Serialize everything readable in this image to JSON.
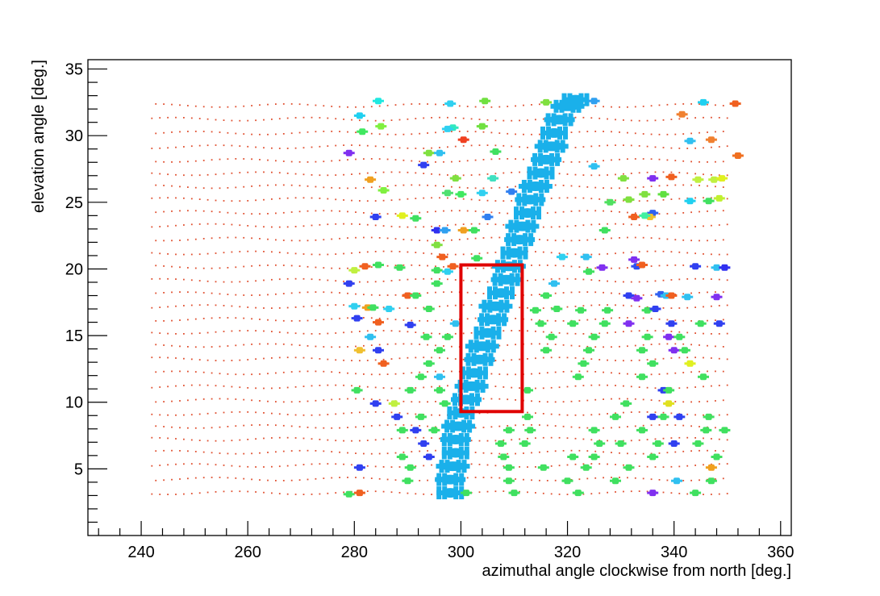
{
  "chart_data": {
    "type": "scatter",
    "title": "",
    "xlabel": "azimuthal angle clockwise from north [deg.]",
    "ylabel": "elevation angle [deg.]",
    "xlim": [
      230,
      362
    ],
    "ylim": [
      0,
      35.7
    ],
    "xticks": [
      240,
      260,
      280,
      300,
      320,
      340,
      360
    ],
    "xtick_labels": [
      "240",
      "260",
      "280",
      "300",
      "320",
      "340",
      "360"
    ],
    "yticks": [
      5,
      10,
      15,
      20,
      25,
      30,
      35
    ],
    "ytick_labels": [
      "5",
      "10",
      "15",
      "20",
      "25",
      "30",
      "35"
    ],
    "grid": false,
    "legend": "none",
    "background_points": {
      "color": "#e05030",
      "elevation_range": [
        3.2,
        32.5
      ],
      "elevation_step": 1.0,
      "azimuth_range": [
        242,
        350
      ],
      "azimuth_step": 1.5,
      "description_note": "uniform grid of small red dots"
    },
    "main_track": {
      "color": "#1ab0ea",
      "points": [
        {
          "az": 298,
          "el": 3.2
        },
        {
          "az": 298,
          "el": 4.2
        },
        {
          "az": 298.5,
          "el": 5.2
        },
        {
          "az": 299,
          "el": 6.2
        },
        {
          "az": 299,
          "el": 7.2
        },
        {
          "az": 299.5,
          "el": 8.2
        },
        {
          "az": 300,
          "el": 9.2
        },
        {
          "az": 301,
          "el": 10.2
        },
        {
          "az": 302,
          "el": 11.2
        },
        {
          "az": 302.5,
          "el": 12.2
        },
        {
          "az": 303.5,
          "el": 13.2
        },
        {
          "az": 304,
          "el": 14.2
        },
        {
          "az": 305,
          "el": 15.2
        },
        {
          "az": 306,
          "el": 16.2
        },
        {
          "az": 306.5,
          "el": 17.2
        },
        {
          "az": 307.5,
          "el": 18.2
        },
        {
          "az": 308.5,
          "el": 19.2
        },
        {
          "az": 309,
          "el": 20.2
        },
        {
          "az": 310,
          "el": 21.2
        },
        {
          "az": 311,
          "el": 22.2
        },
        {
          "az": 311.5,
          "el": 23.2
        },
        {
          "az": 312.5,
          "el": 24.2
        },
        {
          "az": 313,
          "el": 25.2
        },
        {
          "az": 314,
          "el": 26.2
        },
        {
          "az": 315,
          "el": 27.2
        },
        {
          "az": 316,
          "el": 28.2
        },
        {
          "az": 317,
          "el": 29.2
        },
        {
          "az": 317.5,
          "el": 30.2
        },
        {
          "az": 318.5,
          "el": 31.2
        },
        {
          "az": 320,
          "el": 32.2
        },
        {
          "az": 321.5,
          "el": 32.7
        }
      ]
    },
    "scatter_points": [
      {
        "az": 284.5,
        "el": 32.6,
        "c": "#20e8e0"
      },
      {
        "az": 298,
        "el": 32.4,
        "c": "#30d0f0"
      },
      {
        "az": 304.5,
        "el": 32.6,
        "c": "#70e040"
      },
      {
        "az": 316,
        "el": 32.5,
        "c": "#80e040"
      },
      {
        "az": 325,
        "el": 32.6,
        "c": "#30a0f0"
      },
      {
        "az": 345.5,
        "el": 32.5,
        "c": "#20d0f0"
      },
      {
        "az": 351.5,
        "el": 32.4,
        "c": "#f06020"
      },
      {
        "az": 281,
        "el": 31.5,
        "c": "#20d0f0"
      },
      {
        "az": 341.5,
        "el": 31.6,
        "c": "#f08030"
      },
      {
        "az": 285,
        "el": 30.7,
        "c": "#80f040"
      },
      {
        "az": 298.5,
        "el": 30.6,
        "c": "#30e8c0"
      },
      {
        "az": 304,
        "el": 30.7,
        "c": "#70e040"
      },
      {
        "az": 281.5,
        "el": 30.3,
        "c": "#40e860"
      },
      {
        "az": 297.5,
        "el": 30.5,
        "c": "#30d0f0"
      },
      {
        "az": 300.5,
        "el": 29.7,
        "c": "#f04020"
      },
      {
        "az": 343,
        "el": 29.6,
        "c": "#30c0f0"
      },
      {
        "az": 347,
        "el": 29.7,
        "c": "#f08030"
      },
      {
        "az": 279,
        "el": 28.7,
        "c": "#8030f0"
      },
      {
        "az": 294,
        "el": 28.7,
        "c": "#80e040"
      },
      {
        "az": 296,
        "el": 28.7,
        "c": "#30c0f0"
      },
      {
        "az": 306.5,
        "el": 28.8,
        "c": "#40e060"
      },
      {
        "az": 352,
        "el": 28.5,
        "c": "#f07020"
      },
      {
        "az": 293,
        "el": 27.8,
        "c": "#3040f0"
      },
      {
        "az": 325,
        "el": 27.7,
        "c": "#30c0f0"
      },
      {
        "az": 283,
        "el": 26.7,
        "c": "#f0a020"
      },
      {
        "az": 299,
        "el": 26.8,
        "c": "#80e040"
      },
      {
        "az": 306,
        "el": 26.8,
        "c": "#40e0c0"
      },
      {
        "az": 330.5,
        "el": 26.8,
        "c": "#80e040"
      },
      {
        "az": 336,
        "el": 26.8,
        "c": "#8030f0"
      },
      {
        "az": 339.5,
        "el": 26.9,
        "c": "#f06020"
      },
      {
        "az": 344.5,
        "el": 26.7,
        "c": "#c0f040"
      },
      {
        "az": 347.5,
        "el": 26.7,
        "c": "#c0f040"
      },
      {
        "az": 349,
        "el": 26.8,
        "c": "#e0f020"
      },
      {
        "az": 285.5,
        "el": 25.9,
        "c": "#80f040"
      },
      {
        "az": 297.5,
        "el": 25.7,
        "c": "#50e070"
      },
      {
        "az": 300,
        "el": 25.6,
        "c": "#40e860"
      },
      {
        "az": 304,
        "el": 25.7,
        "c": "#30d0f0"
      },
      {
        "az": 309.5,
        "el": 25.8,
        "c": "#3080f0"
      },
      {
        "az": 334.5,
        "el": 25.6,
        "c": "#80e040"
      },
      {
        "az": 338,
        "el": 25.6,
        "c": "#60e040"
      },
      {
        "az": 343,
        "el": 25.1,
        "c": "#20d0f0"
      },
      {
        "az": 346.5,
        "el": 25.1,
        "c": "#40e060"
      },
      {
        "az": 348.5,
        "el": 25.3,
        "c": "#c0f030"
      },
      {
        "az": 331.5,
        "el": 25.2,
        "c": "#80e040"
      },
      {
        "az": 328,
        "el": 25.0,
        "c": "#50e060"
      },
      {
        "az": 336,
        "el": 24.2,
        "c": "#3060f0"
      },
      {
        "az": 284,
        "el": 23.9,
        "c": "#3040f0"
      },
      {
        "az": 289,
        "el": 24.0,
        "c": "#e0f020"
      },
      {
        "az": 291.5,
        "el": 23.8,
        "c": "#40e060"
      },
      {
        "az": 305,
        "el": 23.9,
        "c": "#3080f0"
      },
      {
        "az": 332.5,
        "el": 23.9,
        "c": "#f06020"
      },
      {
        "az": 335.5,
        "el": 23.9,
        "c": "#f0c030"
      },
      {
        "az": 334.5,
        "el": 24.0,
        "c": "#40f0a0"
      },
      {
        "az": 327,
        "el": 22.9,
        "c": "#40e060"
      },
      {
        "az": 295.5,
        "el": 22.9,
        "c": "#3030f0"
      },
      {
        "az": 297,
        "el": 22.9,
        "c": "#30a0f0"
      },
      {
        "az": 300.5,
        "el": 22.9,
        "c": "#f0a020"
      },
      {
        "az": 302.5,
        "el": 22.9,
        "c": "#40e060"
      },
      {
        "az": 295.5,
        "el": 21.8,
        "c": "#80e040"
      },
      {
        "az": 296.5,
        "el": 20.9,
        "c": "#f06020"
      },
      {
        "az": 303,
        "el": 20.8,
        "c": "#40e060"
      },
      {
        "az": 319,
        "el": 20.9,
        "c": "#30d0f0"
      },
      {
        "az": 323.5,
        "el": 20.9,
        "c": "#30c0f0"
      },
      {
        "az": 332.5,
        "el": 20.7,
        "c": "#8030f0"
      },
      {
        "az": 280,
        "el": 19.9,
        "c": "#c0f040"
      },
      {
        "az": 282,
        "el": 20.2,
        "c": "#f06020"
      },
      {
        "az": 284.5,
        "el": 20.3,
        "c": "#40e060"
      },
      {
        "az": 288.5,
        "el": 20.1,
        "c": "#40e060"
      },
      {
        "az": 295.5,
        "el": 19.9,
        "c": "#40e060"
      },
      {
        "az": 297.5,
        "el": 19.8,
        "c": "#30d0f0"
      },
      {
        "az": 298.5,
        "el": 20.2,
        "c": "#f06020"
      },
      {
        "az": 324,
        "el": 19.8,
        "c": "#40e060"
      },
      {
        "az": 326.5,
        "el": 20.1,
        "c": "#8030f0"
      },
      {
        "az": 333,
        "el": 20.2,
        "c": "#3050f0"
      },
      {
        "az": 334,
        "el": 20.3,
        "c": "#f06020"
      },
      {
        "az": 344,
        "el": 20.2,
        "c": "#3040f0"
      },
      {
        "az": 348,
        "el": 20.1,
        "c": "#30c0f0"
      },
      {
        "az": 349.5,
        "el": 20.1,
        "c": "#3030f0"
      },
      {
        "az": 279,
        "el": 18.9,
        "c": "#3040f0"
      },
      {
        "az": 295.5,
        "el": 18.9,
        "c": "#40e060"
      },
      {
        "az": 317.5,
        "el": 18.9,
        "c": "#30c0f0"
      },
      {
        "az": 290,
        "el": 18.0,
        "c": "#f06020"
      },
      {
        "az": 291.5,
        "el": 18.0,
        "c": "#40e060"
      },
      {
        "az": 316,
        "el": 18.0,
        "c": "#40e060"
      },
      {
        "az": 331.5,
        "el": 18.0,
        "c": "#3040f0"
      },
      {
        "az": 333,
        "el": 17.8,
        "c": "#8030f0"
      },
      {
        "az": 337.5,
        "el": 18.1,
        "c": "#3060f0"
      },
      {
        "az": 338.5,
        "el": 18.0,
        "c": "#30c0f0"
      },
      {
        "az": 339.5,
        "el": 18.0,
        "c": "#f06020"
      },
      {
        "az": 342.5,
        "el": 17.9,
        "c": "#30c0f0"
      },
      {
        "az": 348,
        "el": 17.9,
        "c": "#8030f0"
      },
      {
        "az": 280,
        "el": 17.2,
        "c": "#30d0f0"
      },
      {
        "az": 282.5,
        "el": 17.1,
        "c": "#f0a020"
      },
      {
        "az": 283.5,
        "el": 17.1,
        "c": "#40e060"
      },
      {
        "az": 286.5,
        "el": 17.0,
        "c": "#30d0f0"
      },
      {
        "az": 294,
        "el": 17.0,
        "c": "#40e060"
      },
      {
        "az": 314,
        "el": 16.9,
        "c": "#40e060"
      },
      {
        "az": 318,
        "el": 17.0,
        "c": "#40e060"
      },
      {
        "az": 322.5,
        "el": 16.9,
        "c": "#40e060"
      },
      {
        "az": 327.5,
        "el": 16.9,
        "c": "#40e060"
      },
      {
        "az": 335,
        "el": 16.9,
        "c": "#40e060"
      },
      {
        "az": 336.5,
        "el": 17.0,
        "c": "#3040f0"
      },
      {
        "az": 280.5,
        "el": 16.3,
        "c": "#3040f0"
      },
      {
        "az": 284.5,
        "el": 16.0,
        "c": "#f06020"
      },
      {
        "az": 290.5,
        "el": 15.8,
        "c": "#3040f0"
      },
      {
        "az": 299,
        "el": 15.9,
        "c": "#30c0f0"
      },
      {
        "az": 315,
        "el": 15.9,
        "c": "#40e060"
      },
      {
        "az": 321,
        "el": 15.9,
        "c": "#40e060"
      },
      {
        "az": 327,
        "el": 15.9,
        "c": "#40e060"
      },
      {
        "az": 331.5,
        "el": 15.9,
        "c": "#8030f0"
      },
      {
        "az": 339.5,
        "el": 15.9,
        "c": "#3040f0"
      },
      {
        "az": 345,
        "el": 15.9,
        "c": "#40e060"
      },
      {
        "az": 348.5,
        "el": 15.9,
        "c": "#3040f0"
      },
      {
        "az": 283,
        "el": 14.9,
        "c": "#30c0f0"
      },
      {
        "az": 293.5,
        "el": 14.9,
        "c": "#40e060"
      },
      {
        "az": 297.5,
        "el": 14.9,
        "c": "#40e060"
      },
      {
        "az": 317,
        "el": 14.9,
        "c": "#40e060"
      },
      {
        "az": 325,
        "el": 14.9,
        "c": "#40e060"
      },
      {
        "az": 335,
        "el": 14.9,
        "c": "#40e060"
      },
      {
        "az": 339,
        "el": 14.9,
        "c": "#8030f0"
      },
      {
        "az": 341,
        "el": 14.9,
        "c": "#40e060"
      },
      {
        "az": 281,
        "el": 13.9,
        "c": "#f0c030"
      },
      {
        "az": 284.5,
        "el": 13.9,
        "c": "#3040f0"
      },
      {
        "az": 296,
        "el": 13.9,
        "c": "#40e060"
      },
      {
        "az": 316,
        "el": 13.9,
        "c": "#40e060"
      },
      {
        "az": 324,
        "el": 13.9,
        "c": "#40e060"
      },
      {
        "az": 334,
        "el": 13.9,
        "c": "#40e060"
      },
      {
        "az": 340,
        "el": 13.9,
        "c": "#8030f0"
      },
      {
        "az": 342,
        "el": 13.9,
        "c": "#40e060"
      },
      {
        "az": 285.5,
        "el": 12.9,
        "c": "#f06020"
      },
      {
        "az": 294,
        "el": 12.9,
        "c": "#40e060"
      },
      {
        "az": 323,
        "el": 12.9,
        "c": "#40e060"
      },
      {
        "az": 336,
        "el": 12.9,
        "c": "#40e060"
      },
      {
        "az": 343,
        "el": 12.9,
        "c": "#e0f020"
      },
      {
        "az": 292.5,
        "el": 11.9,
        "c": "#40e060"
      },
      {
        "az": 296,
        "el": 11.9,
        "c": "#30c0f0"
      },
      {
        "az": 322,
        "el": 11.9,
        "c": "#40e060"
      },
      {
        "az": 334,
        "el": 11.9,
        "c": "#40e060"
      },
      {
        "az": 345.5,
        "el": 11.9,
        "c": "#40e060"
      },
      {
        "az": 280.5,
        "el": 10.9,
        "c": "#40e060"
      },
      {
        "az": 290.5,
        "el": 10.9,
        "c": "#40e060"
      },
      {
        "az": 296,
        "el": 10.9,
        "c": "#40e060"
      },
      {
        "az": 312.5,
        "el": 10.9,
        "c": "#40e060"
      },
      {
        "az": 338,
        "el": 10.9,
        "c": "#3040f0"
      },
      {
        "az": 339,
        "el": 10.9,
        "c": "#40e060"
      },
      {
        "az": 284,
        "el": 9.9,
        "c": "#3040f0"
      },
      {
        "az": 287.5,
        "el": 9.9,
        "c": "#c0f040"
      },
      {
        "az": 297,
        "el": 9.9,
        "c": "#40e060"
      },
      {
        "az": 331,
        "el": 9.9,
        "c": "#40e060"
      },
      {
        "az": 339,
        "el": 9.9,
        "c": "#e0e020"
      },
      {
        "az": 288,
        "el": 8.9,
        "c": "#3040f0"
      },
      {
        "az": 292.5,
        "el": 8.9,
        "c": "#40e060"
      },
      {
        "az": 312.5,
        "el": 8.9,
        "c": "#40e060"
      },
      {
        "az": 329,
        "el": 8.9,
        "c": "#40e060"
      },
      {
        "az": 336,
        "el": 8.9,
        "c": "#3040f0"
      },
      {
        "az": 338,
        "el": 8.9,
        "c": "#40e060"
      },
      {
        "az": 341,
        "el": 8.9,
        "c": "#3040f0"
      },
      {
        "az": 346.5,
        "el": 8.9,
        "c": "#40e060"
      },
      {
        "az": 289,
        "el": 7.9,
        "c": "#40e060"
      },
      {
        "az": 291.5,
        "el": 7.9,
        "c": "#3040f0"
      },
      {
        "az": 295,
        "el": 7.9,
        "c": "#40e060"
      },
      {
        "az": 309,
        "el": 7.9,
        "c": "#40e060"
      },
      {
        "az": 313,
        "el": 7.9,
        "c": "#40e060"
      },
      {
        "az": 325,
        "el": 7.9,
        "c": "#40e060"
      },
      {
        "az": 334,
        "el": 7.9,
        "c": "#40e060"
      },
      {
        "az": 346,
        "el": 7.9,
        "c": "#40e060"
      },
      {
        "az": 349.5,
        "el": 7.9,
        "c": "#40e060"
      },
      {
        "az": 293,
        "el": 6.9,
        "c": "#3040f0"
      },
      {
        "az": 307.5,
        "el": 6.9,
        "c": "#40e060"
      },
      {
        "az": 312,
        "el": 6.9,
        "c": "#40e060"
      },
      {
        "az": 326,
        "el": 6.9,
        "c": "#40e060"
      },
      {
        "az": 330,
        "el": 6.9,
        "c": "#40e060"
      },
      {
        "az": 337,
        "el": 6.9,
        "c": "#40e060"
      },
      {
        "az": 340,
        "el": 6.9,
        "c": "#3040f0"
      },
      {
        "az": 344.5,
        "el": 6.9,
        "c": "#40e060"
      },
      {
        "az": 289,
        "el": 5.9,
        "c": "#40e060"
      },
      {
        "az": 294,
        "el": 5.9,
        "c": "#3040f0"
      },
      {
        "az": 308,
        "el": 5.9,
        "c": "#40e060"
      },
      {
        "az": 321,
        "el": 5.9,
        "c": "#40e060"
      },
      {
        "az": 325,
        "el": 5.9,
        "c": "#40e060"
      },
      {
        "az": 336,
        "el": 5.9,
        "c": "#40e060"
      },
      {
        "az": 348,
        "el": 5.9,
        "c": "#40e060"
      },
      {
        "az": 281,
        "el": 5.1,
        "c": "#3040f0"
      },
      {
        "az": 290.5,
        "el": 5.1,
        "c": "#40e060"
      },
      {
        "az": 309,
        "el": 5.1,
        "c": "#40e060"
      },
      {
        "az": 315.5,
        "el": 5.1,
        "c": "#40e060"
      },
      {
        "az": 323.5,
        "el": 5.1,
        "c": "#40e060"
      },
      {
        "az": 331.5,
        "el": 5.1,
        "c": "#40e060"
      },
      {
        "az": 347,
        "el": 5.1,
        "c": "#f0a020"
      },
      {
        "az": 290,
        "el": 4.1,
        "c": "#40e060"
      },
      {
        "az": 309,
        "el": 4.1,
        "c": "#40e060"
      },
      {
        "az": 320,
        "el": 4.1,
        "c": "#40e060"
      },
      {
        "az": 329,
        "el": 4.1,
        "c": "#40e060"
      },
      {
        "az": 340.5,
        "el": 4.1,
        "c": "#30c0f0"
      },
      {
        "az": 347,
        "el": 4.1,
        "c": "#40e060"
      },
      {
        "az": 279,
        "el": 3.1,
        "c": "#40e060"
      },
      {
        "az": 281,
        "el": 3.2,
        "c": "#f06020"
      },
      {
        "az": 301,
        "el": 3.2,
        "c": "#40e060"
      },
      {
        "az": 310,
        "el": 3.2,
        "c": "#40e060"
      },
      {
        "az": 322,
        "el": 3.2,
        "c": "#40e060"
      },
      {
        "az": 336,
        "el": 3.2,
        "c": "#8030f0"
      },
      {
        "az": 344,
        "el": 3.2,
        "c": "#40e060"
      }
    ],
    "annotation_box": {
      "color": "#e00000",
      "az_range": [
        300,
        311.5
      ],
      "el_range": [
        9.3,
        20.3
      ]
    }
  }
}
